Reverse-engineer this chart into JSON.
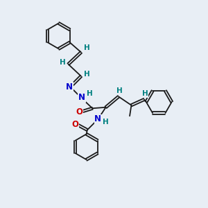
{
  "bg_color": "#e8eef5",
  "bond_color": "#1a1a1a",
  "N_color": "#0000cc",
  "O_color": "#cc0000",
  "H_color": "#008080",
  "figsize": [
    3.0,
    3.0
  ],
  "dpi": 100,
  "xlim": [
    0,
    10
  ],
  "ylim": [
    0,
    10
  ]
}
